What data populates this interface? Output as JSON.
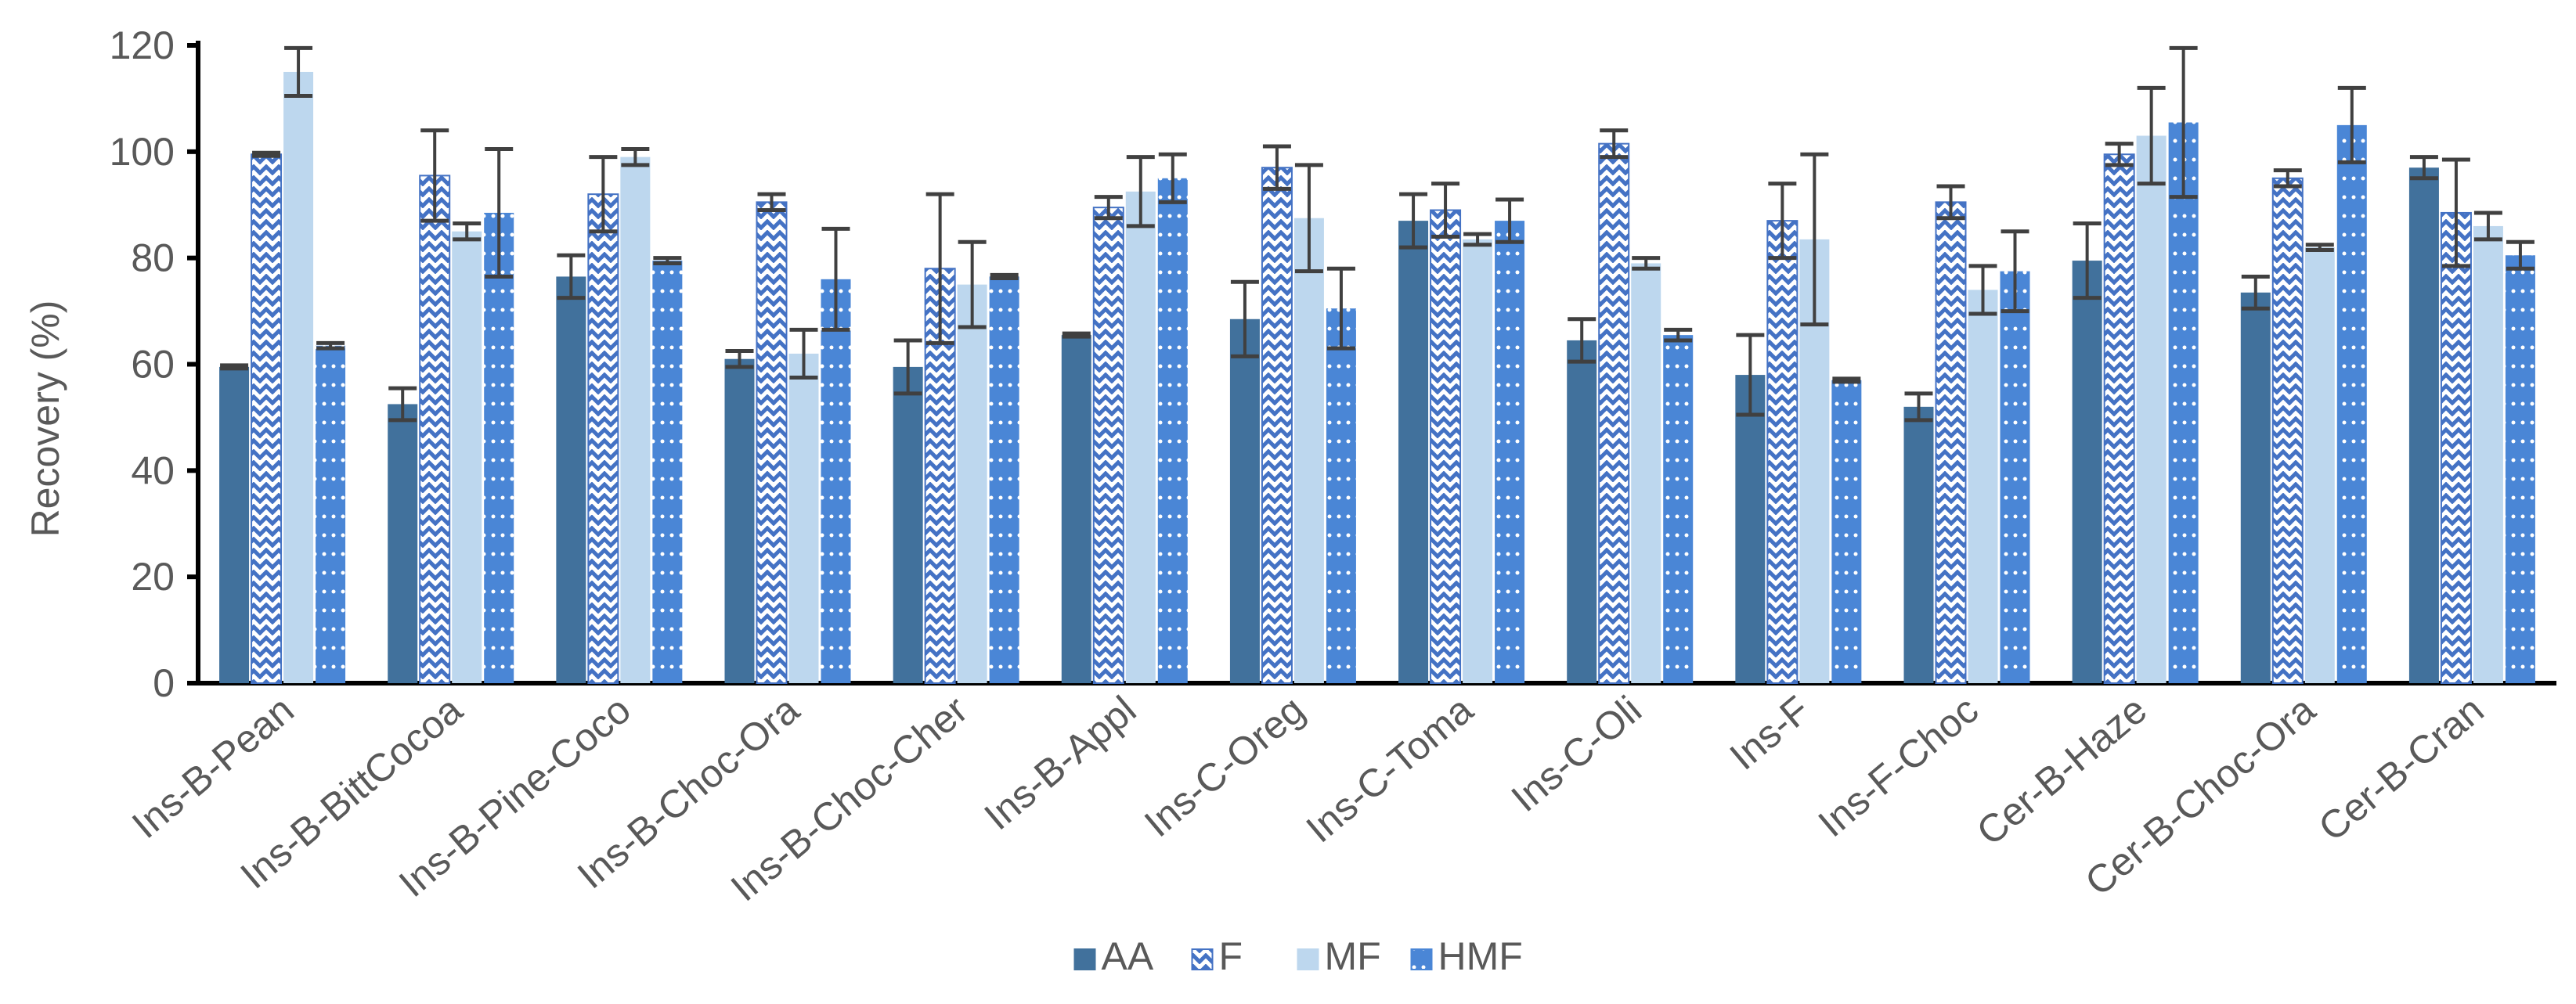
{
  "chart_data": {
    "type": "bar",
    "title": "",
    "xlabel": "",
    "ylabel": "Recovery (%)",
    "ylim": [
      0,
      120
    ],
    "yticks": [
      0,
      20,
      40,
      60,
      80,
      100,
      120
    ],
    "grid": false,
    "legend_position": "bottom-center",
    "categories": [
      "Ins-B-Pean",
      "Ins-B-BittCocoa",
      "Ins-B-Pine-Coco",
      "Ins-B-Choc-Ora",
      "Ins-B-Choc-Cher",
      "Ins-B-Appl",
      "Ins-C-Oreg",
      "Ins-C-Toma",
      "Ins-C-Oli",
      "Ins-F",
      "Ins-F-Choc",
      "Cer-B-Haze",
      "Cer-B-Choc-Ora",
      "Cer-B-Cran"
    ],
    "series": [
      {
        "name": "AA",
        "color": "#41719c",
        "pattern": "solid",
        "values": [
          59.5,
          52.5,
          76.5,
          61,
          59.5,
          65.5,
          68.5,
          87,
          64.5,
          58,
          52,
          79.5,
          73.5,
          97
        ],
        "errors": [
          0.3,
          3,
          4,
          1.5,
          5,
          0.3,
          7,
          5,
          4,
          7.5,
          2.5,
          7,
          3,
          2
        ]
      },
      {
        "name": "F",
        "color": "#4472c4",
        "pattern": "zigzag",
        "values": [
          99.5,
          95.5,
          92,
          90.5,
          78,
          89.5,
          97,
          89,
          101.5,
          87,
          90.5,
          99.5,
          95,
          88.5
        ],
        "errors": [
          0.3,
          8.5,
          7,
          1.5,
          14,
          2,
          4,
          5,
          2.5,
          7,
          3,
          2,
          1.5,
          10
        ]
      },
      {
        "name": "MF",
        "color": "#bdd7ee",
        "pattern": "solid",
        "values": [
          115,
          85,
          99,
          62,
          75,
          92.5,
          87.5,
          83.5,
          79,
          83.5,
          74,
          103,
          82,
          86
        ],
        "errors": [
          4.5,
          1.5,
          1.5,
          4.5,
          8,
          6.5,
          10,
          1,
          1,
          16,
          4.5,
          9,
          0.5,
          2.5
        ]
      },
      {
        "name": "HMF",
        "color": "#4a86d6",
        "pattern": "dotted",
        "values": [
          63.5,
          88.5,
          79.5,
          76,
          76.5,
          95,
          70.5,
          87,
          65.5,
          57,
          77.5,
          105.5,
          105,
          80.5
        ],
        "errors": [
          0.5,
          12,
          0.5,
          9.5,
          0.3,
          4.5,
          7.5,
          4,
          1,
          0.3,
          7.5,
          14,
          7,
          2.5
        ]
      }
    ]
  }
}
